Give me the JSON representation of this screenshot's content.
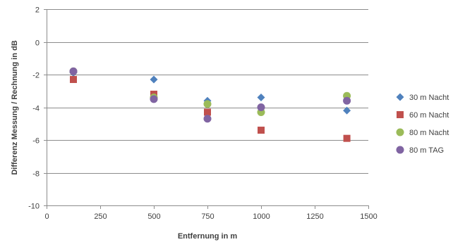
{
  "chart_data": {
    "type": "scatter",
    "xlabel": "Entfernung in m",
    "ylabel": "Differenz Messung / Rechnung in dB",
    "xlim": [
      0,
      1500
    ],
    "ylim": [
      -10,
      2
    ],
    "x_ticks": [
      0,
      250,
      500,
      750,
      1000,
      1250,
      1500
    ],
    "y_ticks": [
      2,
      0,
      -2,
      -4,
      -6,
      -8,
      -10
    ],
    "grid": "horizontal",
    "legend_position": "right",
    "series": [
      {
        "name": "30 m Nacht",
        "marker": "diamond",
        "color": "#4F81BD",
        "x": [
          125,
          500,
          750,
          1000,
          1400
        ],
        "y": [
          -1.9,
          -2.3,
          -3.6,
          -3.4,
          -4.2
        ]
      },
      {
        "name": "60 m Nacht",
        "marker": "square",
        "color": "#C0504D",
        "x": [
          125,
          500,
          750,
          1000,
          1400
        ],
        "y": [
          -2.3,
          -3.2,
          -4.3,
          -5.4,
          -5.9
        ]
      },
      {
        "name": "80 m Nacht",
        "marker": "circle",
        "color": "#9BBB59",
        "x": [
          125,
          500,
          750,
          1000,
          1400
        ],
        "y": [
          -1.8,
          -3.4,
          -3.8,
          -4.3,
          -3.3
        ]
      },
      {
        "name": "80 m TAG",
        "marker": "circle",
        "color": "#8064A2",
        "x": [
          125,
          500,
          750,
          1000,
          1400
        ],
        "y": [
          -1.8,
          -3.5,
          -4.7,
          -4.0,
          -3.6
        ]
      }
    ]
  }
}
